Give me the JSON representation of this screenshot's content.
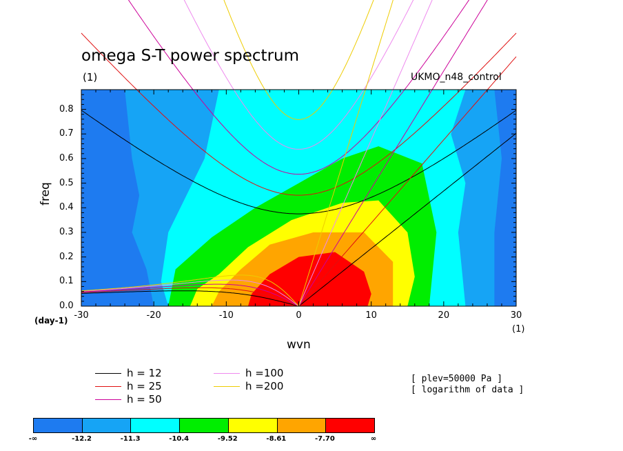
{
  "chart_data": {
    "type": "contour",
    "title": "omega S-T power spectrum",
    "subtitle": "(1)",
    "dataset": "UKMO_n48_control",
    "xlabel": "wvn",
    "ylabel": "freq",
    "x_unit_note": "(1)",
    "y_unit_note": "(day-1)",
    "xlim": [
      -30,
      30
    ],
    "ylim": [
      0,
      0.88
    ],
    "x_ticks": [
      -30,
      -20,
      -10,
      0,
      10,
      20,
      30
    ],
    "y_ticks": [
      0.0,
      0.1,
      0.2,
      0.3,
      0.4,
      0.5,
      0.6,
      0.7,
      0.8
    ],
    "x_tick_labels": [
      "-30",
      "-20",
      "-10",
      "0",
      "10",
      "20",
      "30"
    ],
    "y_tick_labels": [
      "0.0",
      "0.1",
      "0.2",
      "0.3",
      "0.4",
      "0.5",
      "0.6",
      "0.7",
      "0.8"
    ],
    "levels": [
      "-∞",
      "-12.2",
      "-11.3",
      "-10.4",
      "-9.52",
      "-8.61",
      "-7.70",
      "∞"
    ],
    "fill_colors": [
      "#1e7bf0",
      "#16a4f5",
      "#00ffff",
      "#00ee00",
      "#ffff00",
      "#ffa500",
      "#ff0000"
    ],
    "dispersion_curves": [
      {
        "label": "h = 12",
        "h": 12,
        "color": "#000000"
      },
      {
        "label": "h = 25",
        "h": 25,
        "color": "#e01010"
      },
      {
        "label": "h = 50",
        "h": 50,
        "color": "#cc0099"
      },
      {
        "label": "h =100",
        "h": 100,
        "color": "#ee88ee"
      },
      {
        "label": "h =200",
        "h": 200,
        "color": "#eecc00"
      }
    ],
    "annotations": [
      "[ plev=50000 Pa ]",
      "[ logarithm of data ]"
    ]
  }
}
